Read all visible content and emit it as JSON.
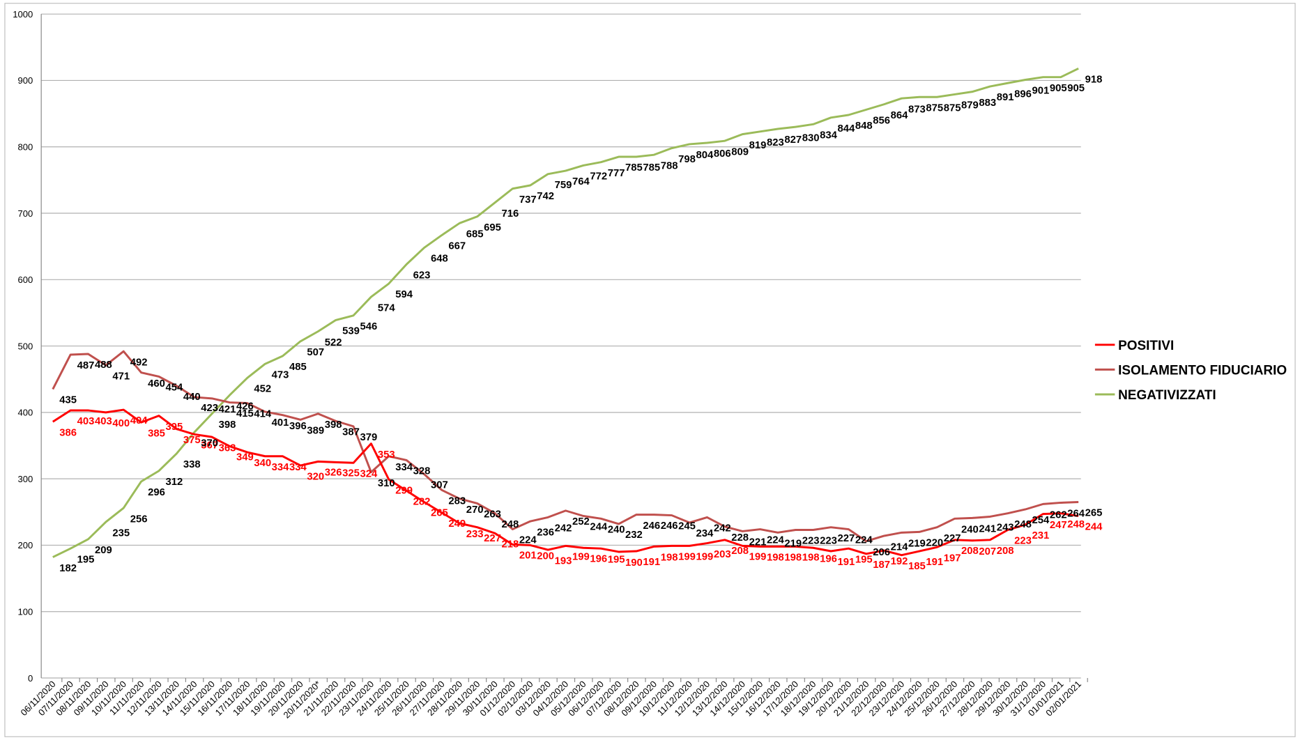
{
  "chart_data": {
    "type": "line",
    "categories": [
      "06/11/2020",
      "07/11/2020",
      "08/11/2020",
      "09/11/2020",
      "10/11/2020",
      "11/11/2020",
      "12/11/2020",
      "13/11/2020",
      "14/11/2020",
      "15/11/2020",
      "16/11/2020",
      "17/11/2020",
      "18/11/2020",
      "19/11/2020",
      "20/11/2020",
      "20/11/2020*",
      "21/11/2020",
      "22/11/2020",
      "23/11/2020",
      "24/11/2020",
      "25/11/2020",
      "26/11/2020",
      "27/11/2020",
      "28/11/2020",
      "29/11/2020",
      "30/11/2020",
      "01/12/2020",
      "02/12/2020",
      "03/12/2020",
      "04/12/2020",
      "05/12/2020",
      "06/12/2020",
      "07/12/2020",
      "08/12/2020",
      "09/12/2020",
      "10/12/2020",
      "11/12/2020",
      "12/12/2020",
      "13/12/2020",
      "14/12/2020",
      "15/12/2020",
      "16/12/2020",
      "17/12/2020",
      "18/12/2020",
      "19/12/2020",
      "20/12/2020",
      "21/12/2020",
      "22/12/2020",
      "23/12/2020",
      "24/12/2020",
      "25/12/2020",
      "26/12/2020",
      "27/12/2020",
      "28/12/2020",
      "29/12/2020",
      "30/12/2020",
      "31/12/2020",
      "01/01/2021",
      "02/01/2021"
    ],
    "series": [
      {
        "name": "POSITIVI",
        "color": "#ff0000",
        "label_color": "#ff0000",
        "values": [
          386,
          403,
          403,
          400,
          404,
          385,
          395,
          375,
          367,
          363,
          349,
          340,
          334,
          334,
          320,
          326,
          325,
          324,
          353,
          299,
          282,
          265,
          249,
          233,
          227,
          218,
          201,
          200,
          193,
          199,
          196,
          195,
          190,
          191,
          198,
          199,
          199,
          203,
          208,
          199,
          198,
          198,
          198,
          196,
          191,
          195,
          187,
          192,
          185,
          191,
          197,
          208,
          207,
          208,
          223,
          231,
          247,
          248,
          244
        ]
      },
      {
        "name": "ISOLAMENTO FIDUCIARIO",
        "color": "#c0504d",
        "label_color": "#000000",
        "values": [
          435,
          487,
          488,
          471,
          492,
          460,
          454,
          440,
          423,
          421,
          415,
          414,
          401,
          396,
          389,
          398,
          387,
          379,
          310,
          334,
          328,
          307,
          283,
          270,
          263,
          248,
          224,
          236,
          242,
          252,
          244,
          240,
          232,
          246,
          246,
          245,
          234,
          242,
          228,
          221,
          224,
          219,
          223,
          223,
          227,
          224,
          206,
          214,
          219,
          220,
          227,
          240,
          241,
          243,
          248,
          254,
          262,
          264,
          265
        ]
      },
      {
        "name": "NEGATIVIZZATI",
        "color": "#9bbb59",
        "label_color": "#000000",
        "values": [
          182,
          195,
          209,
          235,
          256,
          296,
          312,
          338,
          370,
          398,
          426,
          452,
          473,
          485,
          507,
          522,
          539,
          546,
          574,
          594,
          623,
          648,
          667,
          685,
          695,
          716,
          737,
          742,
          759,
          764,
          772,
          777,
          785,
          785,
          788,
          798,
          804,
          806,
          809,
          819,
          823,
          827,
          830,
          834,
          844,
          848,
          856,
          864,
          873,
          875,
          875,
          879,
          883,
          891,
          896,
          901,
          905,
          905,
          918
        ]
      }
    ],
    "ylim": [
      0,
      1000
    ],
    "yticks": [
      0,
      100,
      200,
      300,
      400,
      500,
      600,
      700,
      800,
      900,
      1000
    ],
    "grid": true,
    "legend": "right"
  }
}
